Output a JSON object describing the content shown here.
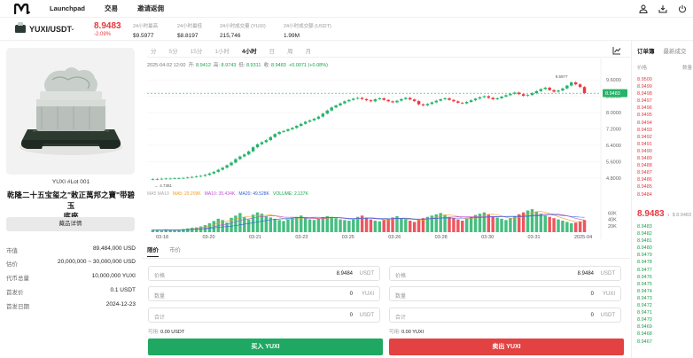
{
  "nav": {
    "links": [
      "Launchpad",
      "交易",
      "邀请返佣"
    ]
  },
  "ticker": {
    "pair": "YUXI/USDT",
    "last_price": "8.9483",
    "change": "-2.09%",
    "stats": [
      {
        "label": "24小时最高",
        "value": "$9.5977"
      },
      {
        "label": "24小时最低",
        "value": "$8.8197"
      },
      {
        "label": "24小时成交量 (YUXI)",
        "value": "215,746"
      },
      {
        "label": "24小时成交额 (USDT)",
        "value": "1.99M"
      }
    ]
  },
  "asset": {
    "lot": "YUXI #Lot 001",
    "title_lines": [
      "乾隆二十五宝玺之\"敕正萬邦之寶\"带碧玉",
      "底座"
    ],
    "detail_button": "藏品详情",
    "info": [
      {
        "k": "市值",
        "v": "89,484,000 USD"
      },
      {
        "k": "估价",
        "v": "20,000,000 ~ 30,000,000 USD"
      },
      {
        "k": "代币总量",
        "v": "10,000,000 YUXI"
      },
      {
        "k": "首发价",
        "v": "0.1 USDT"
      },
      {
        "k": "首发日期",
        "v": "2024-12-23"
      }
    ]
  },
  "chart_toolbar": {
    "timeframes": [
      "分",
      "5分",
      "15分",
      "1小时",
      "4小时",
      "日",
      "周",
      "月"
    ],
    "active_index": 4
  },
  "ohlc": {
    "time": "2025-04-02 12:00",
    "open_label": "开:",
    "open": "8.9412",
    "high_label": "高:",
    "high": "8.9743",
    "low_label": "低:",
    "low": "8.9311",
    "close_label": "收:",
    "close": "8.9483",
    "change": "+0.0071 (+0.08%)"
  },
  "ma_legend": {
    "vol": "MA5 MA10",
    "ma5": "MA5: 29.209K",
    "ma10": "MA10: 35.434K",
    "ma20": "MA20: 49.528K",
    "volume": "VOLUME: 2.137K"
  },
  "chart_data": {
    "type": "candlestick",
    "x_labels": [
      "03-18",
      "03-20",
      "03-21",
      "03-23",
      "03-25",
      "03-26",
      "03-28",
      "03-30",
      "03-31",
      "2025-04"
    ],
    "y_ticks": [
      4.8,
      5.6,
      6.4,
      7.2,
      8.0,
      8.8,
      9.6
    ],
    "y_tick_labels": [
      "4.8000",
      "5.6000",
      "6.4000",
      "7.2000",
      "8.0000",
      "8.8000",
      "9.6000"
    ],
    "ylim": [
      4.4,
      10.3
    ],
    "current_price": 8.9483,
    "max_label": "9.5977",
    "min_label": "4.7381",
    "volume_ticks": [
      "60K",
      "40K",
      "20K"
    ],
    "volume_ylim": [
      0,
      100000
    ],
    "close": [
      4.74,
      4.75,
      4.76,
      4.77,
      4.77,
      4.78,
      4.79,
      4.8,
      4.82,
      4.85,
      4.88,
      4.9,
      4.95,
      5.02,
      5.1,
      5.2,
      5.3,
      5.42,
      5.55,
      5.72,
      5.85,
      5.95,
      6.1,
      6.3,
      6.45,
      6.55,
      6.65,
      6.8,
      6.95,
      7.05,
      7.1,
      7.18,
      7.25,
      7.35,
      7.45,
      7.55,
      7.62,
      7.7,
      7.8,
      7.95,
      8.1,
      8.25,
      8.35,
      8.45,
      8.55,
      8.62,
      8.68,
      8.72,
      8.66,
      8.6,
      8.55,
      8.65,
      8.7,
      8.62,
      8.55,
      8.5,
      8.58,
      8.66,
      8.72,
      8.64,
      8.56,
      8.4,
      8.35,
      8.42,
      8.5,
      8.58,
      8.65,
      8.7,
      8.62,
      8.55,
      8.48,
      8.45,
      8.52,
      8.6,
      8.68,
      8.75,
      8.8,
      8.72,
      8.65,
      8.7,
      8.78,
      8.85,
      8.92,
      8.98,
      8.9,
      8.82,
      8.86,
      8.95,
      9.05,
      9.15,
      9.22,
      9.1,
      9.02,
      9.08,
      9.18,
      9.32,
      9.48,
      9.38,
      9.25,
      8.95
    ],
    "volume": [
      8,
      6,
      5,
      9,
      7,
      6,
      8,
      10,
      12,
      14,
      15,
      18,
      22,
      28,
      35,
      42,
      38,
      30,
      45,
      52,
      60,
      48,
      40,
      55,
      62,
      58,
      50,
      46,
      42,
      38,
      35,
      40,
      44,
      48,
      52,
      45,
      40,
      38,
      42,
      46,
      50,
      48,
      44,
      40,
      38,
      36,
      42,
      48,
      52,
      46,
      40,
      36,
      34,
      38,
      42,
      46,
      50,
      44,
      40,
      36,
      32,
      38,
      44,
      48,
      52,
      56,
      60,
      54,
      48,
      44,
      40,
      36,
      42,
      48,
      54,
      58,
      62,
      56,
      50,
      46,
      42,
      38,
      44,
      50,
      56,
      62,
      68,
      72,
      64,
      58,
      52,
      48,
      44,
      40,
      36,
      32,
      28,
      30,
      34,
      38
    ]
  },
  "order_form": {
    "tabs": [
      "限价",
      "市价"
    ],
    "buy": {
      "price_label": "价格",
      "price_value": "8.9484",
      "price_unit": "USDT",
      "qty_label": "数量",
      "qty_value": "0",
      "qty_unit": "YUXI",
      "total_label": "合计",
      "total_value": "0",
      "total_unit": "USDT",
      "avail_label": "可用:",
      "avail_value": "0.00 USDT",
      "button": "买入 YUXI"
    },
    "sell": {
      "price_label": "价格",
      "price_value": "8.9484",
      "price_unit": "USDT",
      "qty_label": "数量",
      "qty_value": "0",
      "qty_unit": "YUXI",
      "total_label": "合计",
      "total_value": "0",
      "total_unit": "USDT",
      "avail_label": "可用:",
      "avail_value": "0.00 YUXI",
      "button": "卖出 YUXI"
    }
  },
  "order_book": {
    "tabs": [
      "订单簿",
      "最新成交"
    ],
    "header_price": "价格",
    "header_qty": "数量",
    "asks": [
      "8.9500",
      "8.9499",
      "8.9498",
      "8.9497",
      "8.9496",
      "8.9495",
      "8.9494",
      "8.9493",
      "8.9492",
      "8.9491",
      "8.9490",
      "8.9489",
      "8.9488",
      "8.9487",
      "8.9486",
      "8.9485",
      "8.9484"
    ],
    "mid_price": "8.9483",
    "mid_arrow": "↓",
    "mid_sub": "$ 8.9483",
    "bids": [
      "8.9483",
      "8.9482",
      "8.9481",
      "8.9480",
      "8.9479",
      "8.9478",
      "8.9477",
      "8.9476",
      "8.9475",
      "8.9474",
      "8.9473",
      "8.9472",
      "8.9471",
      "8.9470",
      "8.9469",
      "8.9468",
      "8.9467"
    ]
  }
}
